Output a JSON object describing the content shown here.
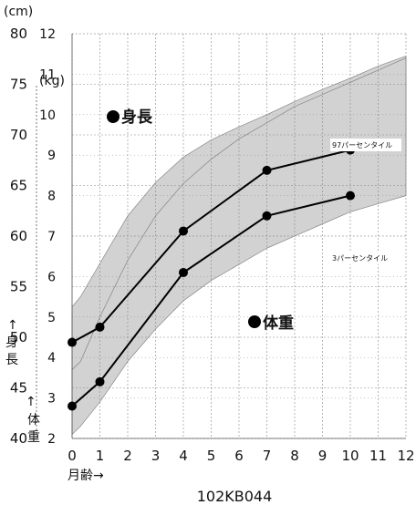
{
  "chart_data": {
    "type": "line",
    "caption": "102KB044",
    "x": [
      0,
      1,
      4,
      7,
      10
    ],
    "x_ticks": [
      "0",
      "1",
      "2",
      "3",
      "4",
      "5",
      "6",
      "7",
      "8",
      "9",
      "10",
      "11",
      "12"
    ],
    "xlim": [
      0,
      12
    ],
    "xlabel": "月齢→",
    "y_height": {
      "unit": "(cm)",
      "ticks": [
        "80",
        "75",
        "70",
        "65",
        "60",
        "55",
        "50",
        "45",
        "40"
      ],
      "ylim": [
        40,
        80
      ],
      "axis_label": [
        "↑",
        "身",
        "長"
      ]
    },
    "y_weight": {
      "unit": "(kg)",
      "ticks": [
        "12",
        "11",
        "10",
        "9",
        "8",
        "7",
        "6",
        "5",
        "4",
        "3",
        "2"
      ],
      "ylim": [
        2,
        12
      ],
      "axis_label": [
        "↑",
        "体",
        "重"
      ]
    },
    "series": [
      {
        "name": "身長",
        "axis": "height",
        "values": [
          49.5,
          51.0,
          60.5,
          66.5,
          68.5
        ]
      },
      {
        "name": "体重",
        "axis": "weight",
        "values": [
          2.8,
          3.4,
          6.1,
          7.5,
          8.0
        ]
      }
    ],
    "bands": [
      {
        "axis": "height",
        "x": [
          0,
          0.3,
          1,
          2,
          3,
          4,
          5,
          6,
          7,
          8,
          9,
          10,
          11,
          12
        ],
        "lower": [
          45.5,
          46,
          48.5,
          53,
          56,
          58.2,
          60,
          61.5,
          62.7,
          63.8,
          64.8,
          65.8,
          66.8,
          67.8
        ],
        "upper": [
          53,
          54,
          57.3,
          62,
          65.3,
          67.8,
          69.5,
          70.8,
          72,
          73.3,
          74.5,
          75.6,
          76.8,
          77.8
        ]
      },
      {
        "axis": "weight",
        "x": [
          0,
          0.3,
          1,
          2,
          3,
          4,
          5,
          6,
          7,
          8,
          9,
          10,
          11,
          12
        ],
        "lower": [
          2.1,
          2.3,
          2.9,
          3.9,
          4.7,
          5.4,
          5.9,
          6.3,
          6.7,
          7.0,
          7.3,
          7.6,
          7.8,
          8.0
        ],
        "upper": [
          3.7,
          3.9,
          5.0,
          6.4,
          7.5,
          8.3,
          8.9,
          9.4,
          9.8,
          10.2,
          10.5,
          10.8,
          11.1,
          11.4
        ]
      }
    ],
    "annotations": {
      "height_label": "身長",
      "weight_label": "体重",
      "p97": "97パーセンタイル",
      "p3": "3パーセンタイル"
    },
    "colors": {
      "band": "#d2d2d2",
      "line": "#000000",
      "grid": "#888888"
    }
  }
}
